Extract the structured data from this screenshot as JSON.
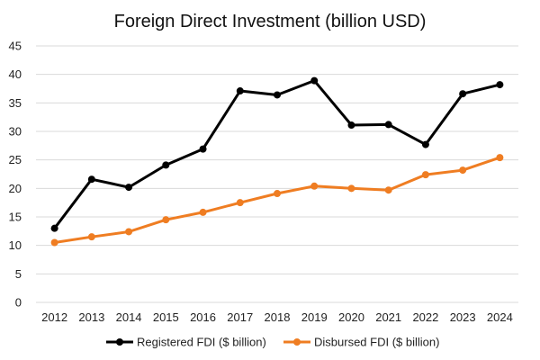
{
  "chart_data": {
    "type": "line",
    "title": "Foreign Direct Investment (billion USD)",
    "xlabel": "",
    "ylabel": "",
    "x": [
      "2012",
      "2013",
      "2014",
      "2015",
      "2016",
      "2017",
      "2018",
      "2019",
      "2020",
      "2021",
      "2022",
      "2023",
      "2024"
    ],
    "ylim": [
      0,
      45
    ],
    "yticks": [
      "0",
      "5",
      "10",
      "15",
      "20",
      "25",
      "30",
      "35",
      "40",
      "45"
    ],
    "grid": true,
    "legend_position": "bottom",
    "series": [
      {
        "name": "Registered FDI ($ billion)",
        "color": "#000000",
        "values": [
          13.0,
          21.6,
          20.2,
          24.1,
          26.9,
          37.1,
          36.4,
          38.9,
          31.1,
          31.2,
          27.7,
          36.6,
          38.2
        ]
      },
      {
        "name": "Disbursed FDI ($ billion)",
        "color": "#ef7d22",
        "values": [
          10.5,
          11.5,
          12.4,
          14.5,
          15.8,
          17.5,
          19.1,
          20.4,
          20.0,
          19.7,
          22.4,
          23.2,
          25.4
        ]
      }
    ]
  }
}
